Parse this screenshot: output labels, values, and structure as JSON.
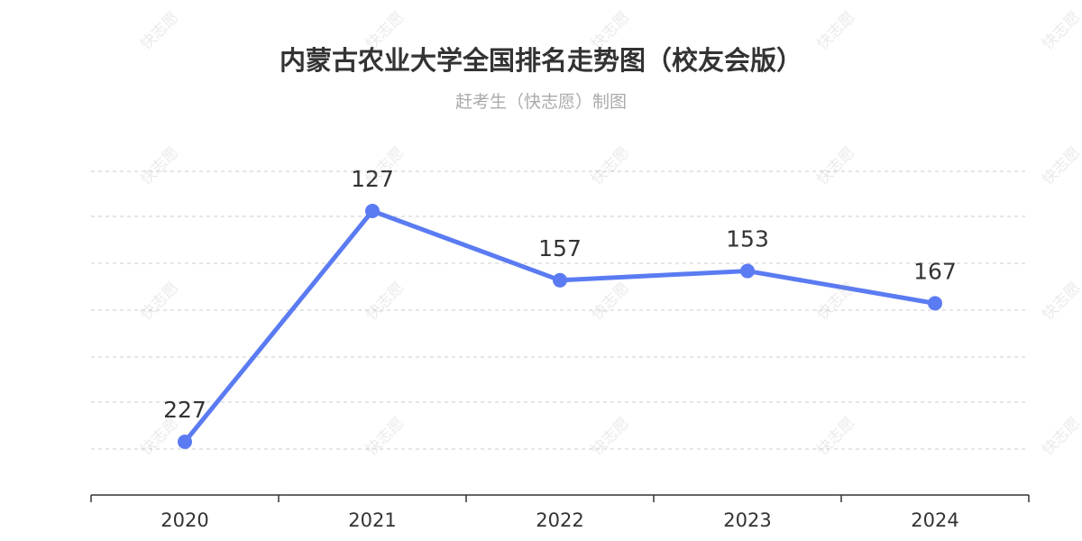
{
  "header": {
    "title": "内蒙古农业大学全国排名走势图（校友会版）",
    "subtitle": "赶考生（快志愿）制图"
  },
  "watermark": {
    "text": "快志愿"
  },
  "colors": {
    "line": "#5b7bf2",
    "grid": "#cccccc",
    "axis": "#333333",
    "label": "#333333"
  },
  "chart_data": {
    "type": "line",
    "categories": [
      "2020",
      "2021",
      "2022",
      "2023",
      "2024"
    ],
    "series": [
      {
        "values": [
          227,
          127,
          157,
          153,
          167
        ],
        "labels": [
          "227",
          "127",
          "157",
          "153",
          "167"
        ]
      }
    ],
    "title": "内蒙古农业大学全国排名走势图（校友会版）",
    "subtitle": "赶考生（快志愿）制图",
    "xlabel": "",
    "ylabel": "",
    "y_inverted": true,
    "grid": true,
    "legend": "none"
  }
}
